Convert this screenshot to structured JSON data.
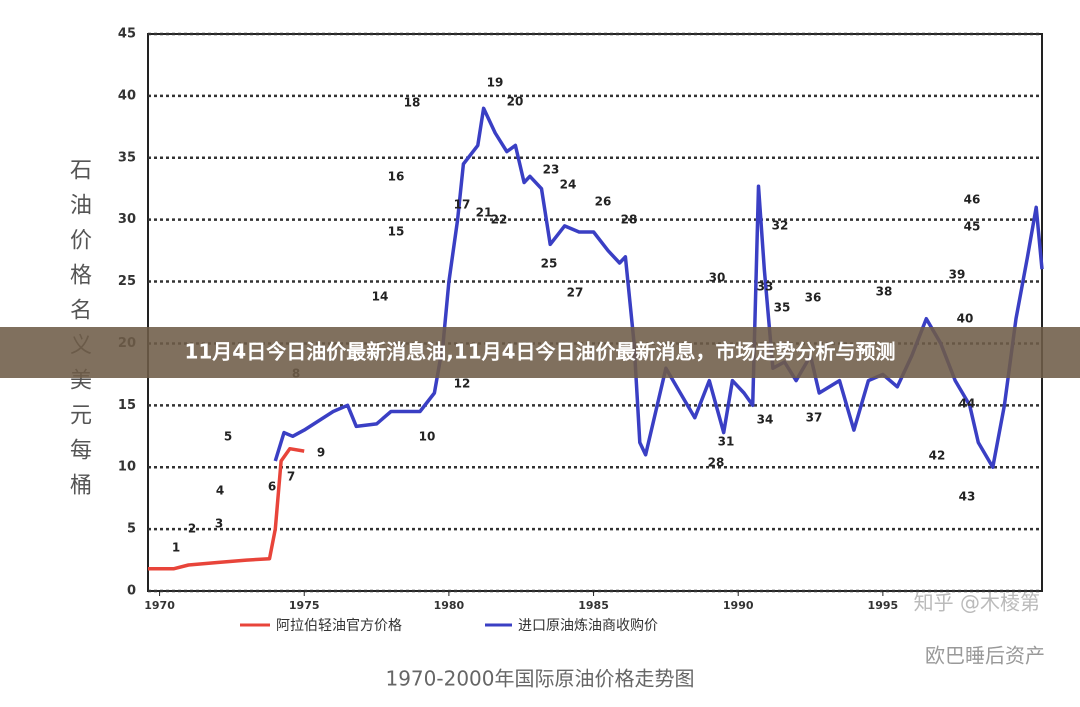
{
  "chart_data": {
    "type": "line",
    "title": "1970-2000年国际原油价格走势图",
    "y_label": "石油价格名义美元每桶",
    "xlim": [
      1969.6,
      2000.5
    ],
    "xticks": [
      1970,
      1975,
      1980,
      1985,
      1990,
      1995
    ],
    "ylim": [
      0,
      45
    ],
    "yticks": [
      0,
      5,
      10,
      15,
      20,
      25,
      30,
      35,
      40,
      45
    ],
    "grid": true,
    "series": [
      {
        "name": "阿拉伯轻油官方价格",
        "color": "#e8443a",
        "x": [
          1969.6,
          1970.5,
          1971,
          1972,
          1973,
          1973.8,
          1974,
          1974.2,
          1974.5,
          1975
        ],
        "values": [
          1.8,
          1.8,
          2.1,
          2.3,
          2.5,
          2.6,
          5,
          10.5,
          11.5,
          11.3
        ]
      },
      {
        "name": "进口原油炼油商收购价",
        "color": "#3a3fc4",
        "x": [
          1974,
          1974.3,
          1974.6,
          1975,
          1976,
          1976.5,
          1976.8,
          1977.5,
          1978,
          1979,
          1979.5,
          1979.8,
          1980,
          1980.3,
          1980.5,
          1981,
          1981.2,
          1981.6,
          1982,
          1982.3,
          1982.6,
          1982.8,
          1983.2,
          1983.5,
          1984,
          1984.5,
          1985,
          1985.5,
          1985.9,
          1986.1,
          1986.4,
          1986.6,
          1986.8,
          1987,
          1987.5,
          1988,
          1988.5,
          1989,
          1989.5,
          1989.8,
          1990.2,
          1990.5,
          1990.7,
          1990.9,
          1991.2,
          1991.6,
          1992,
          1992.5,
          1992.8,
          1993.5,
          1994,
          1994.5,
          1995,
          1995.5,
          1996,
          1996.5,
          1997,
          1997.5,
          1998,
          1998.3,
          1998.8,
          1999.2,
          1999.6,
          2000,
          2000.3,
          2000.5
        ],
        "values": [
          10.5,
          12.8,
          12.5,
          13,
          14.5,
          15,
          13.3,
          13.5,
          14.5,
          14.5,
          16,
          20,
          25,
          30,
          34.5,
          36,
          39,
          37,
          35.5,
          36,
          33,
          33.5,
          32.5,
          28,
          29.5,
          29,
          29,
          27.5,
          26.5,
          27,
          20,
          12,
          11,
          13,
          18,
          16,
          14,
          17,
          12.8,
          17,
          16,
          15,
          32.7,
          26,
          18,
          18.5,
          17,
          19,
          16,
          17,
          13,
          17,
          17.5,
          16.5,
          19,
          22,
          20,
          17,
          15,
          12,
          10,
          15,
          22,
          27,
          31,
          26
        ]
      }
    ],
    "annotations": [
      "1",
      "2",
      "3",
      "4",
      "5",
      "6",
      "7",
      "8",
      "9",
      "10",
      "12",
      "14",
      "15",
      "16",
      "17",
      "18",
      "19",
      "20",
      "21",
      "22",
      "23",
      "24",
      "25",
      "26",
      "27",
      "28",
      "28",
      "30",
      "31",
      "32",
      "33",
      "34",
      "35",
      "36",
      "37",
      "38",
      "39",
      "40",
      "42",
      "43",
      "44",
      "45",
      "46"
    ]
  },
  "banner": "11月4日今日油价最新消息油,11月4日今日油价最新消息，市场走势分析与预测",
  "watermarks": [
    "知乎 @木棱第",
    "欧巴睡后资产"
  ]
}
